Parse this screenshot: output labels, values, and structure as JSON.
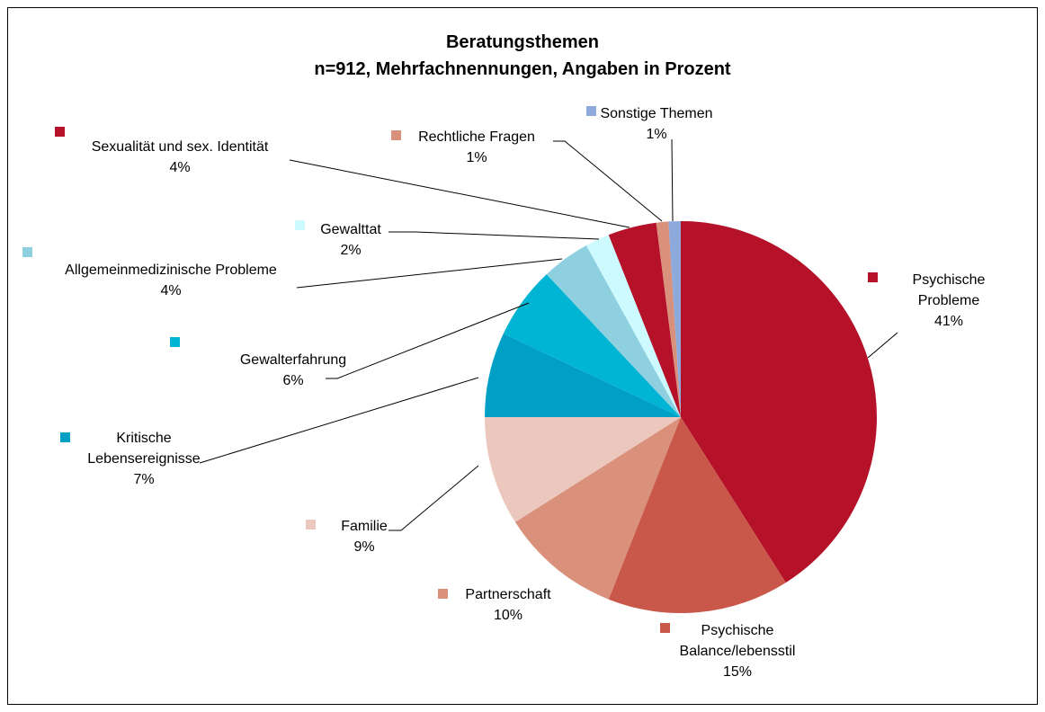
{
  "chart_data": {
    "type": "pie",
    "title": "Beratungsthemen",
    "subtitle": "n=912, Mehrfachnennungen, Angaben in Prozent",
    "categories": [
      "Psychische Probleme",
      "Psychische Balance/lebensstil",
      "Partnerschaft",
      "Familie",
      "Kritische Lebensereignisse",
      "Gewalterfahrung",
      "Allgemeinmedizinische Probleme",
      "Gewalttat",
      "Sexualität und sex. Identität",
      "Rechtliche Fragen",
      "Sonstige Themen"
    ],
    "values": [
      41,
      15,
      10,
      9,
      7,
      6,
      4,
      2,
      4,
      1,
      1
    ],
    "value_labels": [
      "41%",
      "15%",
      "10%",
      "9%",
      "7%",
      "6%",
      "4%",
      "2%",
      "4%",
      "1%",
      "1%"
    ],
    "colors": [
      "#b5122a",
      "#c9584a",
      "#d9917c",
      "#ecc7bd",
      "#00a0c6",
      "#00b4d4",
      "#8fd0e0",
      "#ccfaff",
      "#b5122a",
      "#d9917c",
      "#8ea9db"
    ]
  }
}
